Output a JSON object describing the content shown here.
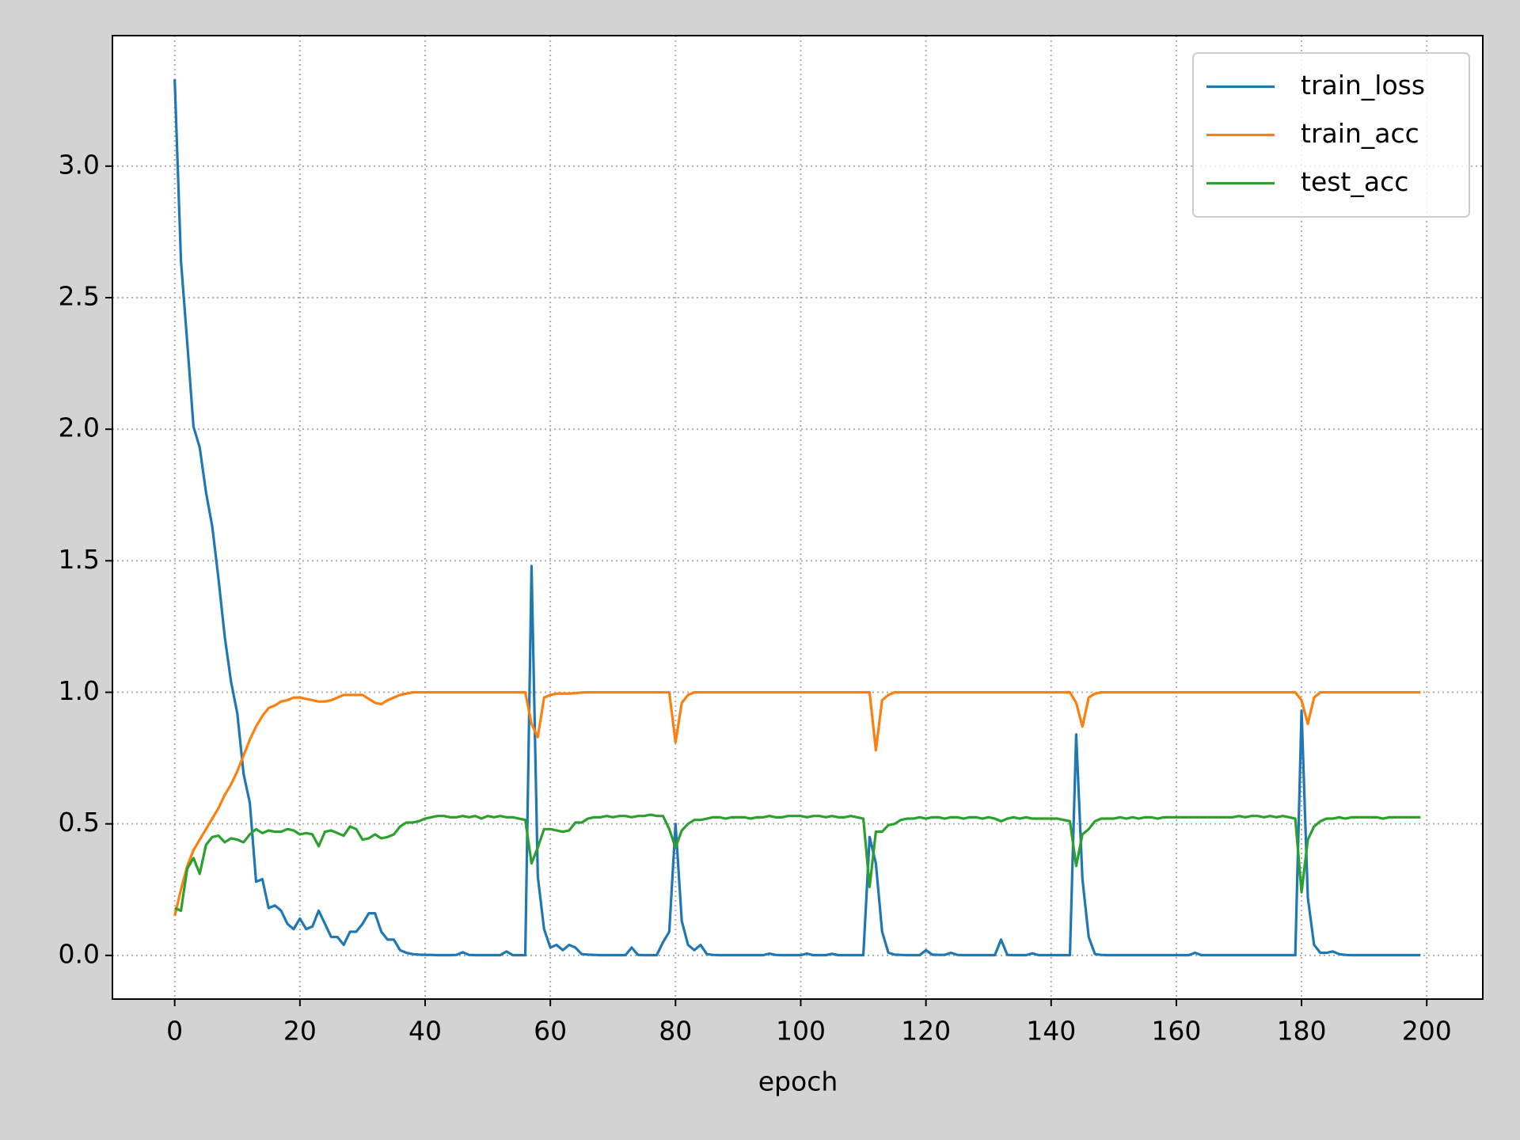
{
  "chart_data": {
    "type": "line",
    "xlabel": "epoch",
    "x": [
      0,
      1,
      2,
      3,
      4,
      5,
      6,
      7,
      8,
      9,
      10,
      11,
      12,
      13,
      14,
      15,
      16,
      17,
      18,
      19,
      20,
      21,
      22,
      23,
      24,
      25,
      26,
      27,
      28,
      29,
      30,
      31,
      32,
      33,
      34,
      35,
      36,
      37,
      38,
      39,
      40,
      41,
      42,
      43,
      44,
      45,
      46,
      47,
      48,
      49,
      50,
      51,
      52,
      53,
      54,
      55,
      56,
      57,
      58,
      59,
      60,
      61,
      62,
      63,
      64,
      65,
      66,
      67,
      68,
      69,
      70,
      71,
      72,
      73,
      74,
      75,
      76,
      77,
      78,
      79,
      80,
      81,
      82,
      83,
      84,
      85,
      86,
      87,
      88,
      89,
      90,
      91,
      92,
      93,
      94,
      95,
      96,
      97,
      98,
      99,
      100,
      101,
      102,
      103,
      104,
      105,
      106,
      107,
      108,
      109,
      110,
      111,
      112,
      113,
      114,
      115,
      116,
      117,
      118,
      119,
      120,
      121,
      122,
      123,
      124,
      125,
      126,
      127,
      128,
      129,
      130,
      131,
      132,
      133,
      134,
      135,
      136,
      137,
      138,
      139,
      140,
      141,
      142,
      143,
      144,
      145,
      146,
      147,
      148,
      149,
      150,
      151,
      152,
      153,
      154,
      155,
      156,
      157,
      158,
      159,
      160,
      161,
      162,
      163,
      164,
      165,
      166,
      167,
      168,
      169,
      170,
      171,
      172,
      173,
      174,
      175,
      176,
      177,
      178,
      179,
      180,
      181,
      182,
      183,
      184,
      185,
      186,
      187,
      188,
      189,
      190,
      191,
      192,
      193,
      194,
      195,
      196,
      197,
      198,
      199
    ],
    "series": [
      {
        "name": "train_loss",
        "color": "#1f77b4",
        "values": [
          3.33,
          2.64,
          2.33,
          2.01,
          1.93,
          1.76,
          1.63,
          1.43,
          1.21,
          1.04,
          0.92,
          0.69,
          0.58,
          0.28,
          0.29,
          0.18,
          0.19,
          0.17,
          0.12,
          0.1,
          0.14,
          0.1,
          0.11,
          0.17,
          0.12,
          0.07,
          0.07,
          0.04,
          0.09,
          0.09,
          0.12,
          0.16,
          0.16,
          0.09,
          0.06,
          0.06,
          0.02,
          0.01,
          0.005,
          0.003,
          0.002,
          0.002,
          0.001,
          0.001,
          0.001,
          0.002,
          0.012,
          0.002,
          0.001,
          0.001,
          0.001,
          0.001,
          0.001,
          0.015,
          0.001,
          0.001,
          0.001,
          1.48,
          0.3,
          0.1,
          0.03,
          0.04,
          0.02,
          0.04,
          0.03,
          0.005,
          0.003,
          0.002,
          0.001,
          0.001,
          0.001,
          0.001,
          0.001,
          0.03,
          0.002,
          0.001,
          0.001,
          0.001,
          0.05,
          0.09,
          0.5,
          0.13,
          0.04,
          0.02,
          0.04,
          0.005,
          0.002,
          0.001,
          0.001,
          0.001,
          0.001,
          0.001,
          0.001,
          0.001,
          0.001,
          0.007,
          0.002,
          0.001,
          0.001,
          0.001,
          0.001,
          0.007,
          0.001,
          0.001,
          0.001,
          0.006,
          0.001,
          0.001,
          0.001,
          0.001,
          0.001,
          0.45,
          0.35,
          0.09,
          0.01,
          0.003,
          0.002,
          0.001,
          0.001,
          0.001,
          0.02,
          0.003,
          0.002,
          0.002,
          0.01,
          0.002,
          0.001,
          0.001,
          0.001,
          0.001,
          0.001,
          0.001,
          0.06,
          0.002,
          0.001,
          0.001,
          0.001,
          0.008,
          0.001,
          0.001,
          0.001,
          0.001,
          0.001,
          0.001,
          0.84,
          0.29,
          0.07,
          0.005,
          0.002,
          0.001,
          0.001,
          0.001,
          0.001,
          0.001,
          0.001,
          0.001,
          0.001,
          0.001,
          0.001,
          0.001,
          0.001,
          0.001,
          0.001,
          0.01,
          0.001,
          0.001,
          0.001,
          0.001,
          0.001,
          0.001,
          0.001,
          0.001,
          0.001,
          0.001,
          0.001,
          0.001,
          0.001,
          0.001,
          0.001,
          0.001,
          0.93,
          0.22,
          0.04,
          0.01,
          0.01,
          0.015,
          0.005,
          0.002,
          0.001,
          0.001,
          0.001,
          0.001,
          0.001,
          0.001,
          0.001,
          0.001,
          0.001,
          0.001,
          0.001,
          0.001
        ]
      },
      {
        "name": "train_acc",
        "color": "#ff7f0e",
        "values": [
          0.15,
          0.25,
          0.34,
          0.4,
          0.44,
          0.48,
          0.52,
          0.56,
          0.61,
          0.65,
          0.7,
          0.76,
          0.82,
          0.87,
          0.91,
          0.94,
          0.95,
          0.965,
          0.97,
          0.98,
          0.98,
          0.975,
          0.97,
          0.965,
          0.965,
          0.97,
          0.98,
          0.99,
          0.99,
          0.99,
          0.99,
          0.975,
          0.96,
          0.955,
          0.97,
          0.98,
          0.99,
          0.995,
          1,
          1,
          1,
          1,
          1,
          1,
          1,
          1,
          1,
          1,
          1,
          1,
          1,
          1,
          1,
          1,
          1,
          1,
          1,
          0.88,
          0.83,
          0.98,
          0.99,
          0.995,
          0.995,
          0.995,
          0.997,
          0.999,
          1,
          1,
          1,
          1,
          1,
          1,
          1,
          1,
          1,
          1,
          1,
          1,
          1,
          1,
          0.81,
          0.96,
          0.99,
          1,
          1,
          1,
          1,
          1,
          1,
          1,
          1,
          1,
          1,
          1,
          1,
          1,
          1,
          1,
          1,
          1,
          1,
          1,
          1,
          1,
          1,
          1,
          1,
          1,
          1,
          1,
          1,
          1,
          0.78,
          0.97,
          0.99,
          1,
          1,
          1,
          1,
          1,
          1,
          1,
          1,
          1,
          1,
          1,
          1,
          1,
          1,
          1,
          1,
          1,
          1,
          1,
          1,
          1,
          1,
          1,
          1,
          1,
          1,
          1,
          1,
          1,
          0.96,
          0.87,
          0.98,
          0.995,
          1,
          1,
          1,
          1,
          1,
          1,
          1,
          1,
          1,
          1,
          1,
          1,
          1,
          1,
          1,
          1,
          1,
          1,
          1,
          1,
          1,
          1,
          1,
          1,
          1,
          1,
          1,
          1,
          1,
          1,
          1,
          1,
          0.97,
          0.88,
          0.98,
          1,
          1,
          1,
          1,
          1,
          1,
          1,
          1,
          1,
          1,
          1,
          1,
          1,
          1,
          1,
          1,
          1
        ]
      },
      {
        "name": "test_acc",
        "color": "#2ca02c",
        "values": [
          0.18,
          0.17,
          0.33,
          0.37,
          0.31,
          0.42,
          0.45,
          0.455,
          0.43,
          0.445,
          0.44,
          0.43,
          0.46,
          0.48,
          0.465,
          0.475,
          0.47,
          0.47,
          0.48,
          0.475,
          0.46,
          0.465,
          0.46,
          0.415,
          0.47,
          0.475,
          0.465,
          0.455,
          0.49,
          0.48,
          0.44,
          0.445,
          0.46,
          0.445,
          0.45,
          0.46,
          0.49,
          0.505,
          0.505,
          0.51,
          0.52,
          0.525,
          0.53,
          0.53,
          0.525,
          0.525,
          0.53,
          0.525,
          0.53,
          0.52,
          0.53,
          0.525,
          0.53,
          0.525,
          0.525,
          0.52,
          0.515,
          0.35,
          0.41,
          0.48,
          0.48,
          0.475,
          0.47,
          0.475,
          0.505,
          0.505,
          0.52,
          0.525,
          0.525,
          0.53,
          0.525,
          0.53,
          0.53,
          0.525,
          0.53,
          0.53,
          0.535,
          0.53,
          0.53,
          0.48,
          0.41,
          0.475,
          0.5,
          0.515,
          0.515,
          0.52,
          0.525,
          0.525,
          0.52,
          0.525,
          0.525,
          0.525,
          0.52,
          0.525,
          0.525,
          0.53,
          0.525,
          0.525,
          0.53,
          0.53,
          0.53,
          0.525,
          0.53,
          0.53,
          0.525,
          0.53,
          0.525,
          0.525,
          0.53,
          0.525,
          0.52,
          0.26,
          0.47,
          0.47,
          0.495,
          0.5,
          0.515,
          0.52,
          0.52,
          0.525,
          0.52,
          0.525,
          0.525,
          0.52,
          0.525,
          0.525,
          0.52,
          0.525,
          0.525,
          0.52,
          0.525,
          0.52,
          0.51,
          0.52,
          0.525,
          0.52,
          0.525,
          0.52,
          0.52,
          0.52,
          0.52,
          0.52,
          0.515,
          0.51,
          0.34,
          0.46,
          0.48,
          0.51,
          0.52,
          0.52,
          0.52,
          0.525,
          0.52,
          0.525,
          0.52,
          0.525,
          0.525,
          0.52,
          0.525,
          0.525,
          0.525,
          0.525,
          0.525,
          0.525,
          0.525,
          0.525,
          0.525,
          0.525,
          0.525,
          0.525,
          0.53,
          0.525,
          0.53,
          0.53,
          0.525,
          0.53,
          0.525,
          0.53,
          0.525,
          0.52,
          0.24,
          0.44,
          0.49,
          0.51,
          0.52,
          0.52,
          0.525,
          0.52,
          0.525,
          0.525,
          0.525,
          0.525,
          0.525,
          0.52,
          0.525,
          0.525,
          0.525,
          0.525,
          0.525,
          0.525
        ]
      }
    ],
    "xlim": [
      -9.95,
      208.95
    ],
    "xticks": [
      0,
      20,
      40,
      60,
      80,
      100,
      120,
      140,
      160,
      180,
      200
    ],
    "ylim": [
      -0.166,
      3.496
    ],
    "yticks": [
      {
        "value": 0,
        "label": "0.0"
      },
      0.5,
      {
        "value": 1,
        "label": "1.0"
      },
      1.5,
      {
        "value": 2,
        "label": "2.0"
      },
      2.5,
      {
        "value": 3,
        "label": "3.0"
      }
    ],
    "grid": true,
    "legend": "upper right"
  }
}
